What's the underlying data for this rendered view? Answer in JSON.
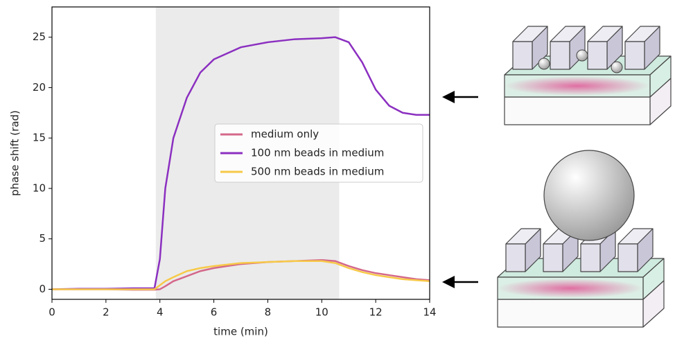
{
  "chart_data": {
    "type": "line",
    "xlabel": "time (min)",
    "ylabel": "phase shift (rad)",
    "x": [
      0,
      1,
      2,
      3,
      3.8,
      4,
      4.2,
      4.5,
      5,
      5.5,
      6,
      7,
      8,
      9,
      10,
      10.5,
      11,
      11.5,
      12,
      12.5,
      13,
      13.5,
      14
    ],
    "series": [
      {
        "name": "medium only",
        "color": "#d4688a",
        "values": [
          0,
          0,
          0,
          -0.05,
          -0.05,
          0,
          0.3,
          0.8,
          1.3,
          1.8,
          2.1,
          2.5,
          2.7,
          2.8,
          2.9,
          2.8,
          2.3,
          1.9,
          1.6,
          1.4,
          1.2,
          1.0,
          0.9
        ]
      },
      {
        "name": "100 nm beads in medium",
        "color": "#8b2fc0",
        "values": [
          0,
          0.05,
          0.05,
          0.1,
          0.1,
          3,
          10,
          15,
          19,
          21.5,
          22.8,
          24,
          24.5,
          24.8,
          24.9,
          25,
          24.5,
          22.5,
          19.8,
          18.2,
          17.5,
          17.3,
          17.3
        ]
      },
      {
        "name": "500 nm beads in medium",
        "color": "#f7c948",
        "values": [
          0,
          0,
          0,
          0,
          0,
          0.4,
          0.8,
          1.2,
          1.8,
          2.1,
          2.3,
          2.6,
          2.7,
          2.8,
          2.8,
          2.6,
          2.1,
          1.7,
          1.4,
          1.2,
          1.0,
          0.9,
          0.8
        ]
      }
    ],
    "shaded_span": [
      3.85,
      10.65
    ],
    "shade_color": "#ebebeb",
    "xlim": [
      0,
      14
    ],
    "xticks": [
      0,
      2,
      4,
      6,
      8,
      10,
      12,
      14
    ],
    "ylim": [
      -1,
      28
    ],
    "yticks": [
      0,
      5,
      10,
      15,
      20,
      25
    ],
    "legend": "center right"
  }
}
